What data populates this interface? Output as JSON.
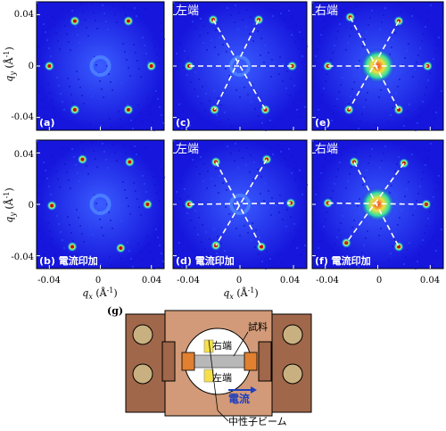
{
  "panels": [
    {
      "id": "a",
      "label": "(a)",
      "corner": "",
      "field": false
    },
    {
      "id": "c",
      "label": "(c)",
      "corner": "左端",
      "field": false
    },
    {
      "id": "e",
      "label": "(e)",
      "corner": "右端",
      "field": false
    },
    {
      "id": "b",
      "label": "(b) 電流印加",
      "corner": "",
      "field": true
    },
    {
      "id": "d",
      "label": "(d) 電流印加",
      "corner": "左端",
      "field": true
    },
    {
      "id": "f",
      "label": "(f) 電流印加",
      "corner": "右端",
      "field": true
    }
  ],
  "axes": {
    "x_label": "q",
    "x_label_sub": "x",
    "x_label_unit": " (Å",
    "x_label_sup": "-1",
    "x_label_end": ")",
    "y_label": "q",
    "y_label_sub": "y",
    "y_label_unit": " (Å",
    "y_label_sup": "-1",
    "y_label_end": ")",
    "x_ticks": [
      "-0.04",
      "0",
      "0.04"
    ],
    "y_ticks": [
      "0.04",
      "0",
      "-0.04"
    ]
  },
  "diagram": {
    "label": "(g)",
    "sample_label": "試料",
    "right_end_label": "右端",
    "left_end_label": "左端",
    "current_label": "電流",
    "beam_label": "中性子ビーム",
    "colors": {
      "holder": "#a0674a",
      "frame": "#d29a78",
      "screw": "#c8b080",
      "sample": "#b8b8b8",
      "beam_marker": "#f5e04a",
      "contact": "#e08030",
      "current_arrow": "#1f3fbf"
    }
  },
  "colors": {
    "background": "#1818e0",
    "spot_core": "#d01010",
    "dashed_line": "#ffffff"
  }
}
